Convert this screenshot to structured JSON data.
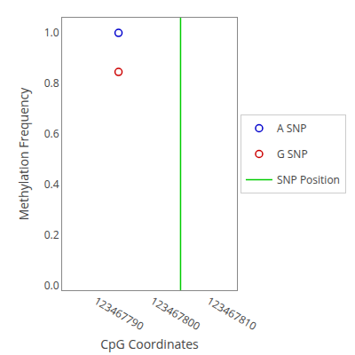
{
  "chart_data": {
    "type": "scatter",
    "xlabel": "CpG Coordinates",
    "ylabel": "Methylation Frequency",
    "xlim": [
      123467784,
      123467815
    ],
    "ylim": [
      -0.02,
      1.06
    ],
    "xticks": [
      123467790,
      123467800,
      123467810
    ],
    "yticks": [
      {
        "value": 0.0,
        "label": "0.0"
      },
      0.2,
      0.4,
      0.6,
      0.8,
      {
        "value": 1.0,
        "label": "1.0"
      }
    ],
    "grid": false,
    "legend": "right",
    "series": [
      {
        "name": "A SNP",
        "color": "#0000cc",
        "marker": "open_circle",
        "x": [
          123467794
        ],
        "values": [
          1.0
        ]
      },
      {
        "name": "G SNP",
        "color": "#cc0000",
        "marker": "open_circle",
        "x": [
          123467794
        ],
        "values": [
          0.845
        ]
      },
      {
        "name": "SNP Position",
        "type": "vline",
        "color": "#00cc00",
        "x": [
          123467805
        ]
      }
    ]
  }
}
